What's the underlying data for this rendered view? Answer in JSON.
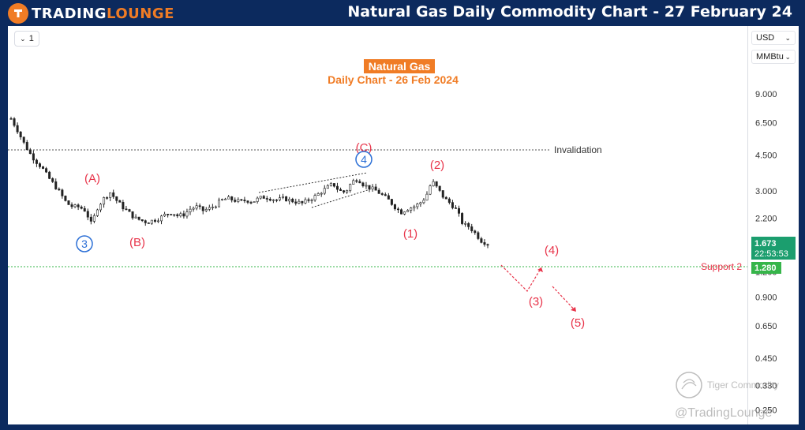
{
  "header": {
    "logo_left": "TRADING",
    "logo_right": "LOUNGE",
    "title": "Natural Gas Daily Commodity Chart - 27 February 24"
  },
  "toolbar": {
    "interval_label": "1",
    "currency": "USD",
    "unit": "MMBtu"
  },
  "chart_data": {
    "type": "candlestick",
    "title": "Natural Gas",
    "subtitle": "Daily Chart - 26 Feb 2024",
    "scale": "log",
    "y_ticks": [
      9.0,
      6.5,
      4.5,
      3.0,
      2.2,
      1.2,
      0.9,
      0.65,
      0.45,
      0.33,
      0.25
    ],
    "y_tick_labels": [
      "9.000",
      "6.500",
      "4.500",
      "3.000",
      "2.200",
      "1.200",
      "0.900",
      "0.650",
      "0.450",
      "0.330",
      "0.250"
    ],
    "price_series": [
      6.8,
      6.0,
      5.2,
      4.6,
      4.2,
      3.9,
      3.5,
      3.2,
      2.9,
      2.6,
      2.5,
      2.5,
      2.4,
      2.05,
      2.5,
      2.75,
      2.95,
      2.7,
      2.5,
      2.35,
      2.2,
      2.15,
      2.1,
      2.15,
      2.2,
      2.3,
      2.35,
      2.25,
      2.3,
      2.45,
      2.5,
      2.4,
      2.45,
      2.55,
      2.7,
      2.75,
      2.7,
      2.65,
      2.7,
      2.65,
      2.75,
      2.8,
      2.75,
      2.7,
      2.75,
      2.7,
      2.65,
      2.6,
      2.7,
      2.8,
      2.95,
      3.1,
      3.25,
      3.0,
      2.95,
      3.3,
      3.45,
      3.2,
      3.1,
      3.0,
      2.85,
      2.7,
      2.5,
      2.35,
      2.45,
      2.5,
      2.6,
      2.8,
      3.35,
      3.05,
      2.75,
      2.6,
      2.4,
      2.05,
      2.0,
      1.85,
      1.7,
      1.65
    ],
    "last_price": {
      "value": 1.673,
      "label": "1.673",
      "countdown": "22:53:53",
      "color": "#1b9e6e"
    },
    "invalidation": {
      "value": 4.65,
      "label": "Invalidation"
    },
    "support": {
      "value": 1.28,
      "label": "Support 2",
      "price_label": "1.280",
      "color": "#36b54a"
    },
    "wave_labels": [
      {
        "text": "3",
        "style": "blue-circle"
      },
      {
        "text": "(A)",
        "style": "red"
      },
      {
        "text": "(B)",
        "style": "red"
      },
      {
        "text": "(C)",
        "style": "red"
      },
      {
        "text": "4",
        "style": "blue-circle"
      },
      {
        "text": "(1)",
        "style": "red"
      },
      {
        "text": "(2)",
        "style": "red"
      },
      {
        "text": "(3)",
        "style": "red"
      },
      {
        "text": "(4)",
        "style": "red"
      },
      {
        "text": "(5)",
        "style": "red"
      }
    ],
    "watermark": {
      "brand": "Tiger Commodity",
      "handle": "@TradingLounge"
    }
  },
  "colors": {
    "header_bg": "#0c2a5e",
    "brand_orange": "#f07c25",
    "wave_red": "#e8344a",
    "wave_blue": "#2b6fd6"
  }
}
